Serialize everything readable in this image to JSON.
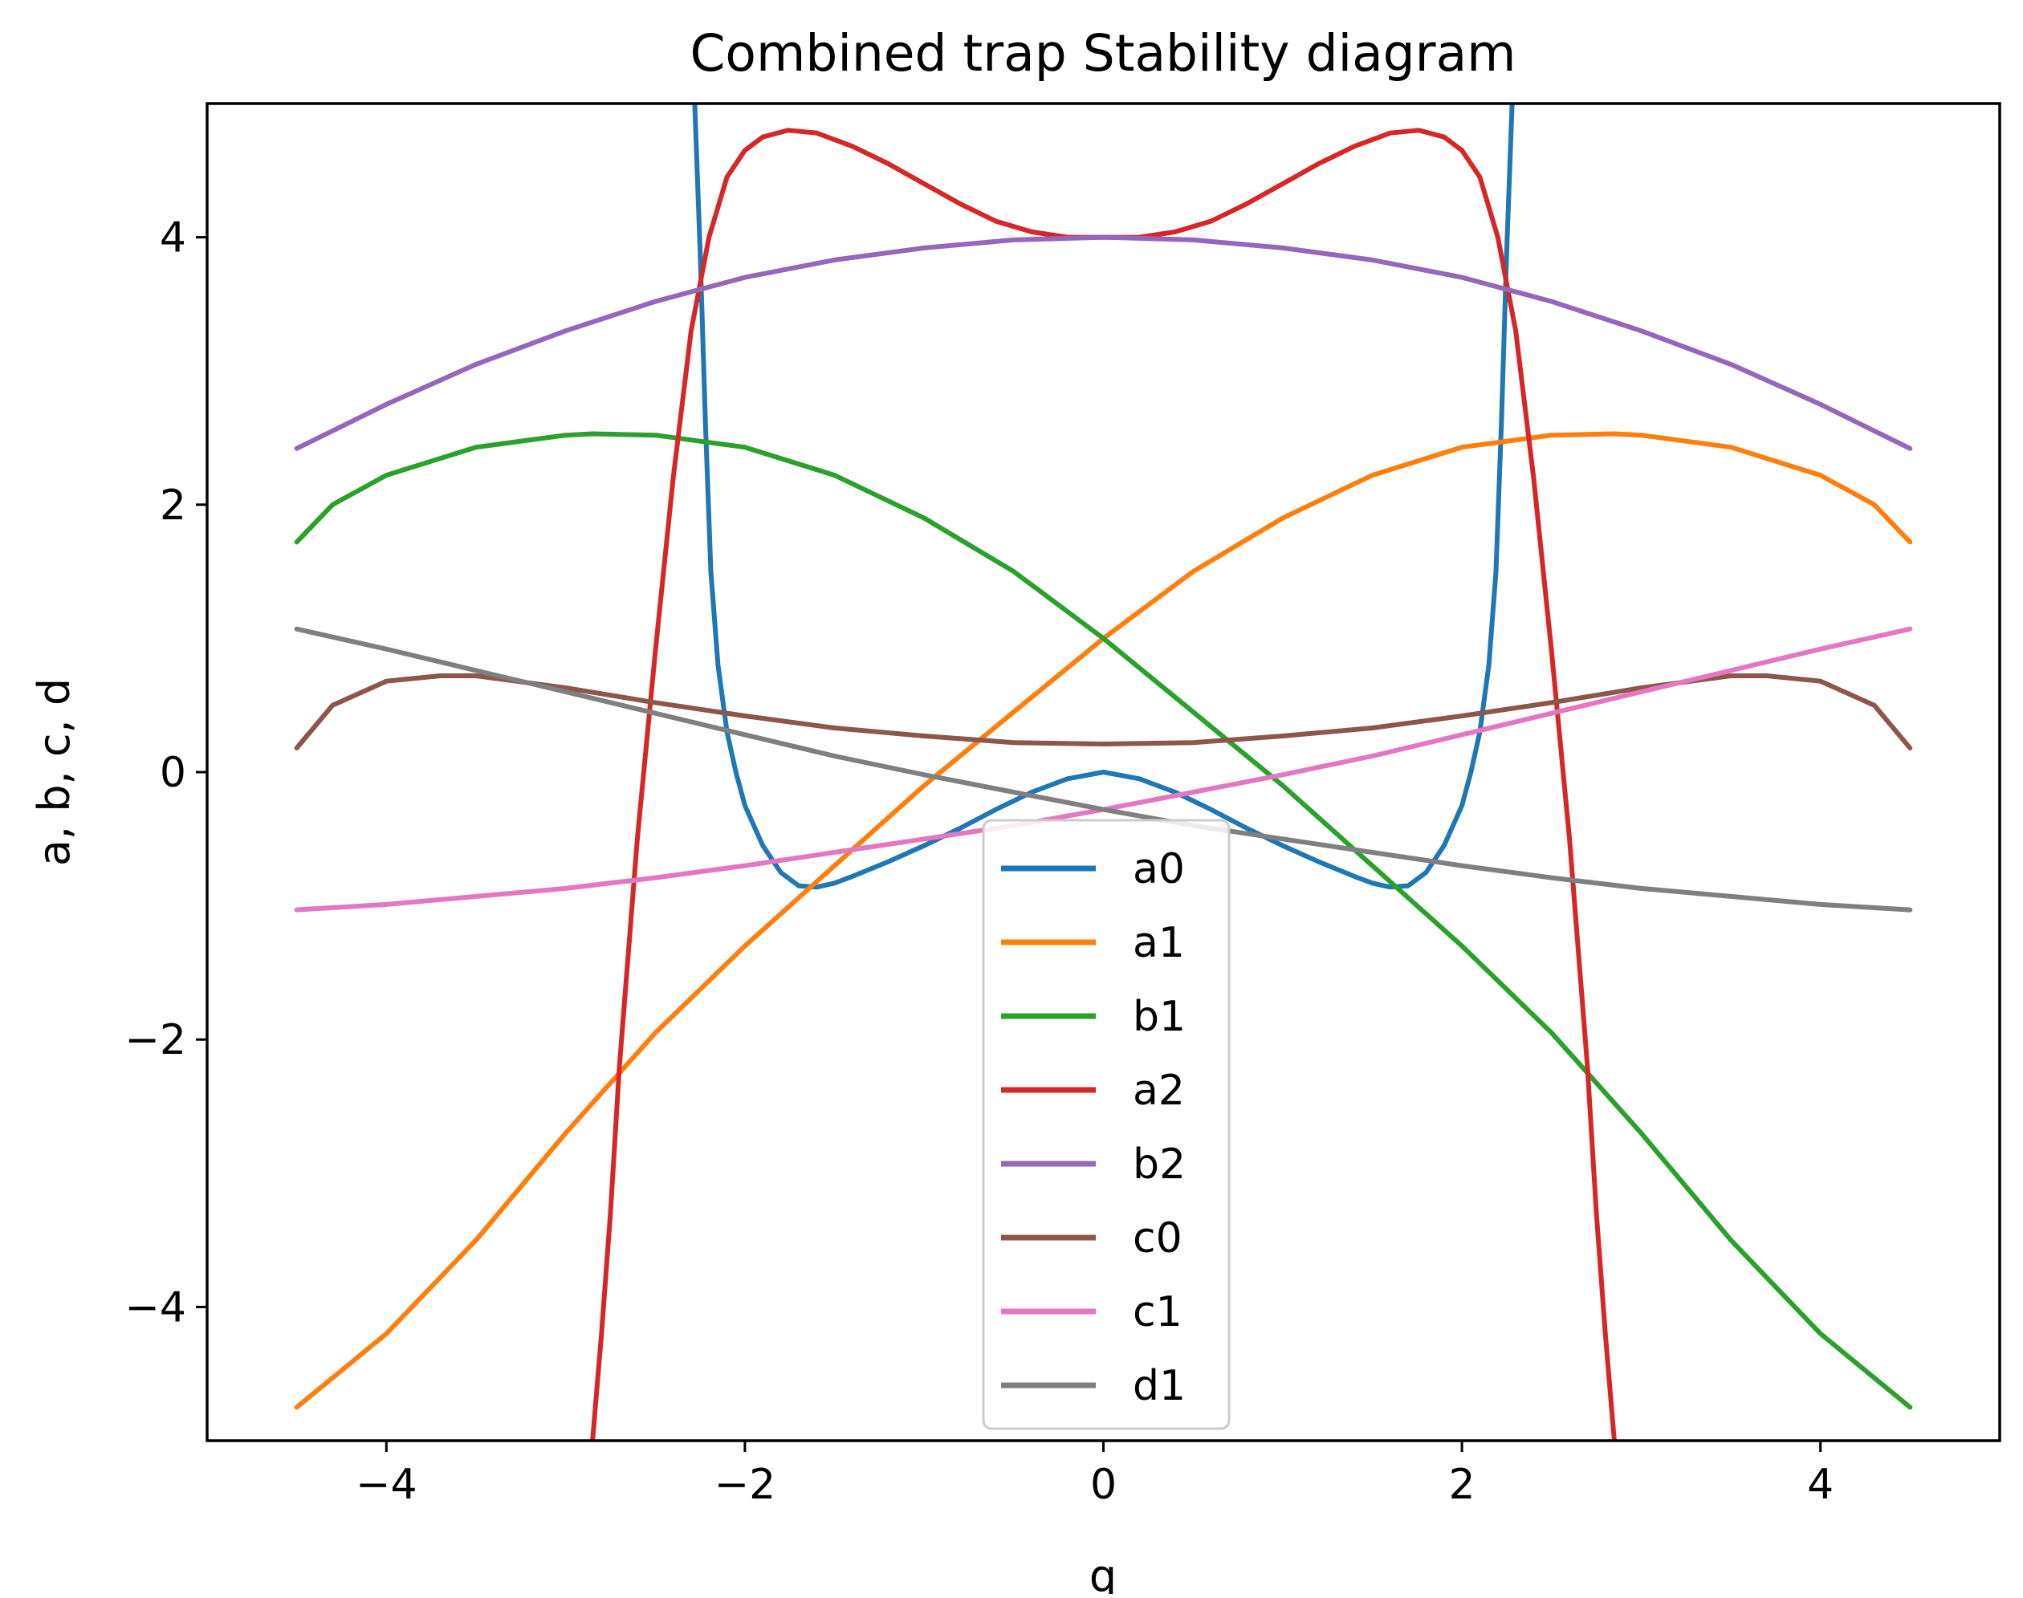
{
  "chart_data": {
    "type": "line",
    "title": "Combined trap Stability diagram",
    "xlabel": "q",
    "ylabel": "a, b, c, d",
    "xlim": [
      -5.0,
      5.0
    ],
    "ylim": [
      -5.0,
      5.0
    ],
    "xticks": [
      -4,
      -2,
      0,
      2,
      4
    ],
    "yticks": [
      -4,
      -2,
      0,
      2,
      4
    ],
    "grid": false,
    "legend_position": "bottom-center",
    "series": [
      {
        "name": "a0",
        "color": "#1f77b4",
        "x": [
          -2.28,
          -2.25,
          -2.22,
          -2.19,
          -2.15,
          -2.1,
          -2.05,
          -2.0,
          -1.9,
          -1.8,
          -1.7,
          -1.6,
          -1.5,
          -1.4,
          -1.2,
          -1.0,
          -0.8,
          -0.6,
          -0.4,
          -0.2,
          0.0,
          0.2,
          0.4,
          0.6,
          0.8,
          1.0,
          1.2,
          1.4,
          1.5,
          1.6,
          1.7,
          1.8,
          1.9,
          2.0,
          2.05,
          2.1,
          2.15,
          2.19,
          2.22,
          2.25,
          2.28
        ],
        "y": [
          5.0,
          3.9,
          2.6,
          1.5,
          0.8,
          0.3,
          0.0,
          -0.25,
          -0.55,
          -0.75,
          -0.85,
          -0.86,
          -0.83,
          -0.78,
          -0.67,
          -0.55,
          -0.42,
          -0.28,
          -0.15,
          -0.05,
          0.0,
          -0.05,
          -0.15,
          -0.28,
          -0.42,
          -0.55,
          -0.67,
          -0.78,
          -0.83,
          -0.86,
          -0.85,
          -0.75,
          -0.55,
          -0.25,
          0.0,
          0.3,
          0.8,
          1.5,
          2.6,
          3.9,
          5.0
        ]
      },
      {
        "name": "a1",
        "color": "#ff7f0e",
        "x": [
          -4.5,
          -4.0,
          -3.5,
          -3.0,
          -2.5,
          -2.0,
          -1.5,
          -1.0,
          -0.5,
          0.0,
          0.5,
          1.0,
          1.5,
          2.0,
          2.5,
          2.85,
          3.0,
          3.5,
          4.0,
          4.3,
          4.5
        ],
        "y": [
          -4.75,
          -4.2,
          -3.5,
          -2.7,
          -1.95,
          -1.3,
          -0.7,
          -0.1,
          0.45,
          1.0,
          1.5,
          1.9,
          2.22,
          2.43,
          2.52,
          2.53,
          2.52,
          2.43,
          2.22,
          2.0,
          1.72
        ]
      },
      {
        "name": "b1",
        "color": "#2ca02c",
        "x": [
          -4.5,
          -4.3,
          -4.0,
          -3.5,
          -3.0,
          -2.85,
          -2.5,
          -2.0,
          -1.5,
          -1.0,
          -0.5,
          0.0,
          0.5,
          1.0,
          1.5,
          2.0,
          2.5,
          3.0,
          3.5,
          4.0,
          4.5
        ],
        "y": [
          1.72,
          2.0,
          2.22,
          2.43,
          2.52,
          2.53,
          2.52,
          2.43,
          2.22,
          1.9,
          1.5,
          1.0,
          0.45,
          -0.1,
          -0.7,
          -1.3,
          -1.95,
          -2.7,
          -3.5,
          -4.2,
          -4.75
        ]
      },
      {
        "name": "a2",
        "color": "#d62728",
        "x": [
          -2.85,
          -2.8,
          -2.75,
          -2.7,
          -2.6,
          -2.5,
          -2.4,
          -2.3,
          -2.2,
          -2.1,
          -2.0,
          -1.9,
          -1.76,
          -1.6,
          -1.4,
          -1.2,
          -1.0,
          -0.8,
          -0.6,
          -0.4,
          -0.2,
          0.0,
          0.2,
          0.4,
          0.6,
          0.8,
          1.0,
          1.2,
          1.4,
          1.6,
          1.76,
          1.9,
          2.0,
          2.1,
          2.2,
          2.3,
          2.4,
          2.5,
          2.6,
          2.7,
          2.75,
          2.8,
          2.85
        ],
        "y": [
          -5.0,
          -4.2,
          -3.3,
          -2.2,
          -0.5,
          0.9,
          2.2,
          3.3,
          4.0,
          4.45,
          4.65,
          4.75,
          4.8,
          4.78,
          4.68,
          4.55,
          4.4,
          4.25,
          4.12,
          4.04,
          4.0,
          4.0,
          4.0,
          4.04,
          4.12,
          4.25,
          4.4,
          4.55,
          4.68,
          4.78,
          4.8,
          4.75,
          4.65,
          4.45,
          4.0,
          3.3,
          2.2,
          0.9,
          -0.5,
          -2.2,
          -3.3,
          -4.2,
          -5.0
        ]
      },
      {
        "name": "b2",
        "color": "#9467bd",
        "x": [
          -4.5,
          -4.0,
          -3.5,
          -3.0,
          -2.5,
          -2.0,
          -1.5,
          -1.0,
          -0.5,
          0.0,
          0.5,
          1.0,
          1.5,
          2.0,
          2.5,
          3.0,
          3.5,
          4.0,
          4.5
        ],
        "y": [
          2.42,
          2.75,
          3.05,
          3.3,
          3.52,
          3.7,
          3.83,
          3.92,
          3.98,
          4.0,
          3.98,
          3.92,
          3.83,
          3.7,
          3.52,
          3.3,
          3.05,
          2.75,
          2.42
        ]
      },
      {
        "name": "c0",
        "color": "#8c564b",
        "x": [
          -4.5,
          -4.3,
          -4.0,
          -3.7,
          -3.5,
          -3.0,
          -2.5,
          -2.0,
          -1.5,
          -1.0,
          -0.5,
          0.0,
          0.5,
          1.0,
          1.5,
          2.0,
          2.5,
          3.0,
          3.5,
          3.7,
          4.0,
          4.3,
          4.5
        ],
        "y": [
          0.18,
          0.5,
          0.68,
          0.72,
          0.72,
          0.63,
          0.52,
          0.42,
          0.33,
          0.27,
          0.22,
          0.21,
          0.22,
          0.27,
          0.33,
          0.42,
          0.52,
          0.63,
          0.72,
          0.72,
          0.68,
          0.5,
          0.18
        ]
      },
      {
        "name": "c1",
        "color": "#e377c2",
        "x": [
          -4.5,
          -4.0,
          -3.5,
          -3.0,
          -2.5,
          -2.0,
          -1.5,
          -1.0,
          -0.5,
          0.0,
          0.5,
          1.0,
          1.5,
          2.0,
          2.5,
          3.0,
          3.5,
          4.0,
          4.5
        ],
        "y": [
          -1.03,
          -0.99,
          -0.93,
          -0.87,
          -0.79,
          -0.7,
          -0.6,
          -0.5,
          -0.4,
          -0.28,
          -0.15,
          -0.02,
          0.12,
          0.28,
          0.44,
          0.6,
          0.76,
          0.92,
          1.07
        ]
      },
      {
        "name": "d1",
        "color": "#7f7f7f",
        "x": [
          -4.5,
          -4.0,
          -3.5,
          -3.0,
          -2.5,
          -2.0,
          -1.5,
          -1.0,
          -0.5,
          0.0,
          0.5,
          1.0,
          1.5,
          2.0,
          2.5,
          3.0,
          3.5,
          4.0,
          4.5
        ],
        "y": [
          1.07,
          0.92,
          0.76,
          0.6,
          0.44,
          0.28,
          0.12,
          -0.02,
          -0.15,
          -0.28,
          -0.4,
          -0.5,
          -0.6,
          -0.7,
          -0.79,
          -0.87,
          -0.93,
          -0.99,
          -1.03
        ]
      }
    ]
  }
}
